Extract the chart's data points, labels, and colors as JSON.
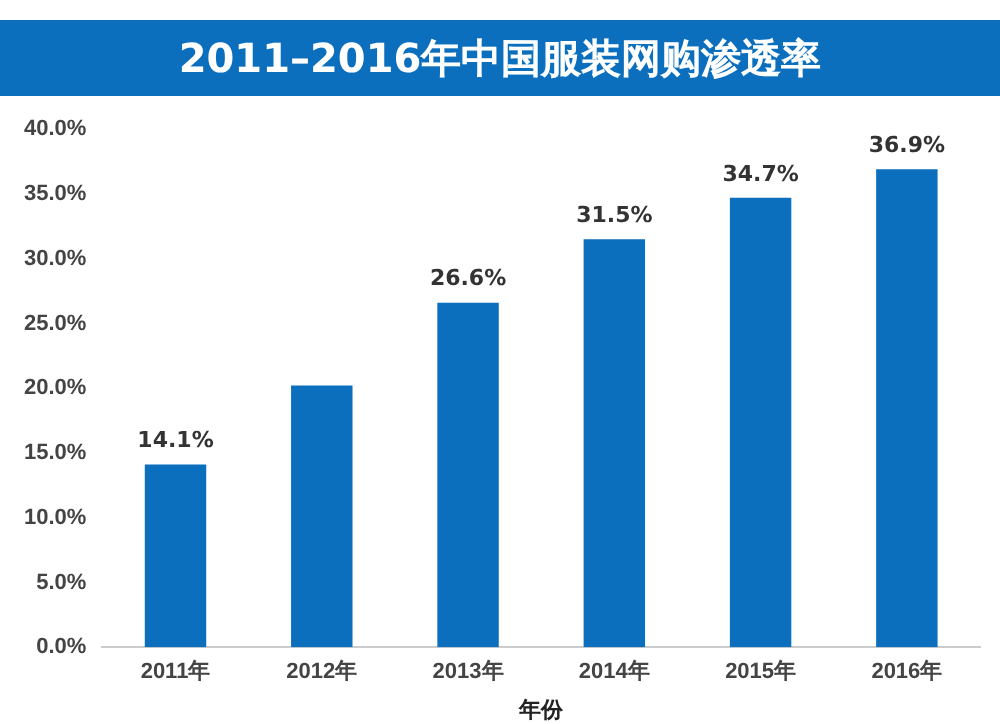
{
  "chart_data": {
    "type": "bar",
    "title": "2011–2016年中国服装网购渗透率",
    "xlabel": "年份",
    "categories": [
      "2011年",
      "2012年",
      "2013年",
      "2014年",
      "2015年",
      "2016年"
    ],
    "values": [
      14.1,
      20.2,
      26.6,
      31.5,
      34.7,
      36.9
    ],
    "value_labels": [
      "14.1%",
      null,
      "26.6%",
      "31.5%",
      "34.7%",
      "36.9%"
    ],
    "color": "#0b6fbd",
    "ylim": [
      0,
      40
    ],
    "yticks": [
      {
        "value": 0,
        "label": "0.0%"
      },
      {
        "value": 5,
        "label": "5.0%"
      },
      {
        "value": 10,
        "label": "10.0%"
      },
      {
        "value": 15,
        "label": "15.0%"
      },
      {
        "value": 20,
        "label": "20.0%"
      },
      {
        "value": 25,
        "label": "25.0%"
      },
      {
        "value": 30,
        "label": "30.0%"
      },
      {
        "value": 35,
        "label": "35.0%"
      },
      {
        "value": 40,
        "label": "40.0%"
      }
    ],
    "grid": false,
    "legend": false
  }
}
